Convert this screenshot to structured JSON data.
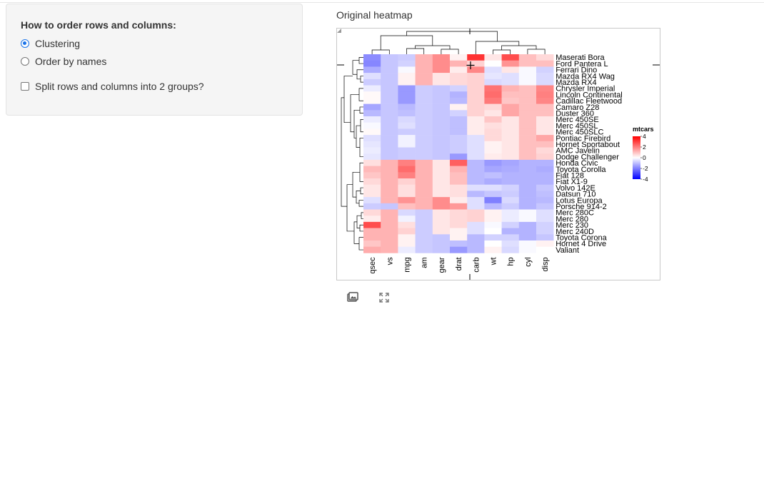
{
  "sidebar": {
    "title": "How to order rows and columns:",
    "options": [
      {
        "label": "Clustering",
        "selected": true
      },
      {
        "label": "Order by names",
        "selected": false
      }
    ],
    "split_label": "Split rows and columns into 2 groups?",
    "split_checked": false
  },
  "main": {
    "title": "Original heatmap"
  },
  "toolbar": {
    "icons": [
      "image-icon",
      "expand-icon"
    ]
  },
  "chart_data": {
    "type": "heatmap",
    "columns": [
      "qsec",
      "vs",
      "mpg",
      "am",
      "gear",
      "drat",
      "carb",
      "wt",
      "hp",
      "cyl",
      "disp"
    ],
    "rows": [
      "Maserati Bora",
      "Ford Pantera L",
      "Ferrari Dino",
      "Mazda RX4 Wag",
      "Mazda RX4",
      "Chrysler Imperial",
      "Lincoln Continental",
      "Cadillac Fleetwood",
      "Camaro Z28",
      "Duster 360",
      "Merc 450SE",
      "Merc 450SL",
      "Merc 450SLC",
      "Pontiac Firebird",
      "Hornet Sportabout",
      "AMC Javelin",
      "Dodge Challenger",
      "Honda Civic",
      "Toyota Corolla",
      "Fiat 128",
      "Fiat X1-9",
      "Volvo 142E",
      "Datsun 710",
      "Lotus Europa",
      "Porsche 914-2",
      "Merc 280C",
      "Merc 280",
      "Merc 230",
      "Merc 240D",
      "Toyota Corona",
      "Hornet 4 Drive",
      "Valiant"
    ],
    "values": [
      [
        -1.8,
        -0.9,
        -0.8,
        1.2,
        1.8,
        0.2,
        3.2,
        0.4,
        2.8,
        1.0,
        0.6
      ],
      [
        -1.9,
        -0.9,
        -0.7,
        1.2,
        1.8,
        1.2,
        0.7,
        0.0,
        1.7,
        1.0,
        1.0
      ],
      [
        -1.3,
        -0.9,
        -0.1,
        1.2,
        1.8,
        0.3,
        1.9,
        -0.5,
        0.4,
        -0.1,
        -0.7
      ],
      [
        -0.5,
        -0.9,
        0.2,
        1.2,
        0.4,
        0.6,
        0.7,
        -0.4,
        -0.5,
        -0.1,
        -0.6
      ],
      [
        -0.8,
        -0.9,
        0.2,
        1.2,
        0.4,
        0.6,
        0.7,
        -0.6,
        -0.5,
        -0.1,
        -0.6
      ],
      [
        -0.3,
        -0.9,
        -1.6,
        -0.8,
        -0.9,
        -0.7,
        0.7,
        2.2,
        1.2,
        1.0,
        1.9
      ],
      [
        0.1,
        -0.9,
        -1.6,
        -0.8,
        -0.9,
        -1.2,
        0.7,
        2.3,
        1.0,
        1.0,
        2.0
      ],
      [
        0.1,
        -0.9,
        -1.6,
        -0.8,
        -0.9,
        -1.1,
        0.7,
        2.1,
        0.9,
        1.0,
        1.9
      ],
      [
        -1.4,
        -0.9,
        -1.1,
        -0.8,
        -0.9,
        0.2,
        0.7,
        0.6,
        1.4,
        1.0,
        1.0
      ],
      [
        -1.1,
        -0.9,
        -1.0,
        -0.8,
        -0.9,
        -0.7,
        0.7,
        0.4,
        1.4,
        1.0,
        1.0
      ],
      [
        -0.3,
        -0.9,
        -0.6,
        -0.8,
        -0.9,
        -1.0,
        0.3,
        0.9,
        0.4,
        1.0,
        0.4
      ],
      [
        -0.1,
        -0.9,
        -0.5,
        -0.8,
        -0.9,
        -1.0,
        0.3,
        0.5,
        0.4,
        1.0,
        0.4
      ],
      [
        0.1,
        -0.9,
        -0.8,
        -0.8,
        -0.9,
        -1.0,
        0.3,
        0.6,
        0.4,
        1.0,
        0.4
      ],
      [
        -0.5,
        -0.9,
        -0.2,
        -0.8,
        -0.9,
        -0.8,
        -0.5,
        0.6,
        0.4,
        1.0,
        1.4
      ],
      [
        -0.4,
        -0.9,
        -0.2,
        -0.8,
        -0.9,
        -0.8,
        -0.5,
        0.2,
        0.4,
        1.0,
        1.0
      ],
      [
        -0.3,
        -0.9,
        -0.8,
        -0.8,
        -0.9,
        -0.8,
        -0.5,
        0.2,
        0.4,
        1.0,
        0.6
      ],
      [
        -0.4,
        -0.9,
        -0.8,
        -0.8,
        -0.9,
        -1.6,
        -0.5,
        0.3,
        0.4,
        1.0,
        0.7
      ],
      [
        0.5,
        1.2,
        2.0,
        1.2,
        0.4,
        2.5,
        -1.1,
        -1.6,
        -1.4,
        -1.2,
        -1.2
      ],
      [
        1.1,
        1.2,
        2.3,
        1.2,
        0.4,
        1.2,
        -1.1,
        -1.4,
        -1.3,
        -1.2,
        -1.3
      ],
      [
        0.9,
        1.2,
        2.0,
        1.2,
        0.4,
        1.0,
        -1.1,
        -1.0,
        -1.2,
        -1.2,
        -1.2
      ],
      [
        0.6,
        1.2,
        0.7,
        1.2,
        0.4,
        1.0,
        -1.1,
        -1.3,
        -1.2,
        -1.2,
        -1.2
      ],
      [
        0.4,
        1.2,
        0.5,
        1.2,
        0.4,
        0.5,
        -0.5,
        -0.5,
        -0.7,
        -1.2,
        -0.9
      ],
      [
        0.4,
        1.2,
        0.5,
        1.2,
        0.4,
        0.5,
        -1.1,
        -0.9,
        -0.8,
        -1.2,
        -1.0
      ],
      [
        -0.5,
        1.2,
        1.7,
        1.2,
        1.8,
        0.3,
        -0.5,
        -2.0,
        -0.6,
        -1.2,
        -1.1
      ],
      [
        -0.8,
        -0.9,
        1.0,
        1.2,
        1.8,
        1.6,
        -0.5,
        -1.1,
        -0.8,
        -1.2,
        -0.9
      ],
      [
        0.6,
        1.2,
        -0.6,
        -0.8,
        0.4,
        0.6,
        0.7,
        0.2,
        -0.3,
        -0.1,
        -0.5
      ],
      [
        0.3,
        1.2,
        -0.2,
        -0.8,
        0.4,
        0.6,
        0.7,
        0.2,
        -0.3,
        -0.1,
        -0.5
      ],
      [
        2.8,
        1.2,
        0.5,
        -0.8,
        0.4,
        0.6,
        -0.5,
        -0.1,
        -0.7,
        -1.2,
        -0.7
      ],
      [
        1.2,
        1.2,
        0.7,
        -0.8,
        0.4,
        0.2,
        -0.5,
        0.0,
        -1.2,
        -1.2,
        -0.7
      ],
      [
        1.2,
        1.2,
        0.2,
        -0.8,
        -0.9,
        0.2,
        -1.1,
        -0.7,
        -0.7,
        -1.2,
        -0.9
      ],
      [
        0.9,
        1.2,
        0.2,
        -0.8,
        -0.9,
        -1.0,
        -1.1,
        -0.0,
        -0.5,
        -0.1,
        0.2
      ],
      [
        1.3,
        1.2,
        -0.3,
        -0.8,
        -0.9,
        -1.6,
        -1.1,
        0.2,
        -0.6,
        -0.1,
        -0.0
      ]
    ],
    "legend": {
      "title": "mtcars",
      "ticks": [
        4,
        2,
        0,
        -2,
        -4
      ],
      "colors": [
        "#0000ff",
        "#ffffff",
        "#ff0000"
      ]
    }
  }
}
